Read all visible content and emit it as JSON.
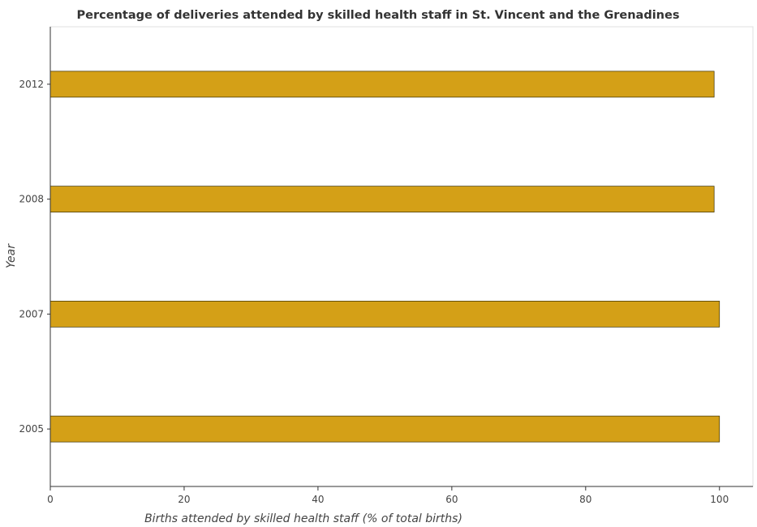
{
  "chart_data": {
    "type": "bar",
    "orientation": "horizontal",
    "title": "Percentage of deliveries attended by skilled health staff in St. Vincent and the Grenadines",
    "xlabel": "Births attended by skilled health staff (% of total births)",
    "ylabel": "Year",
    "categories": [
      "2005",
      "2007",
      "2008",
      "2012"
    ],
    "values": [
      100,
      100,
      99.2,
      99.2
    ],
    "xlim": [
      0,
      105
    ],
    "xticks": [
      0,
      20,
      40,
      60,
      80,
      100
    ],
    "grid": false,
    "bar_color": "#d4a017"
  }
}
